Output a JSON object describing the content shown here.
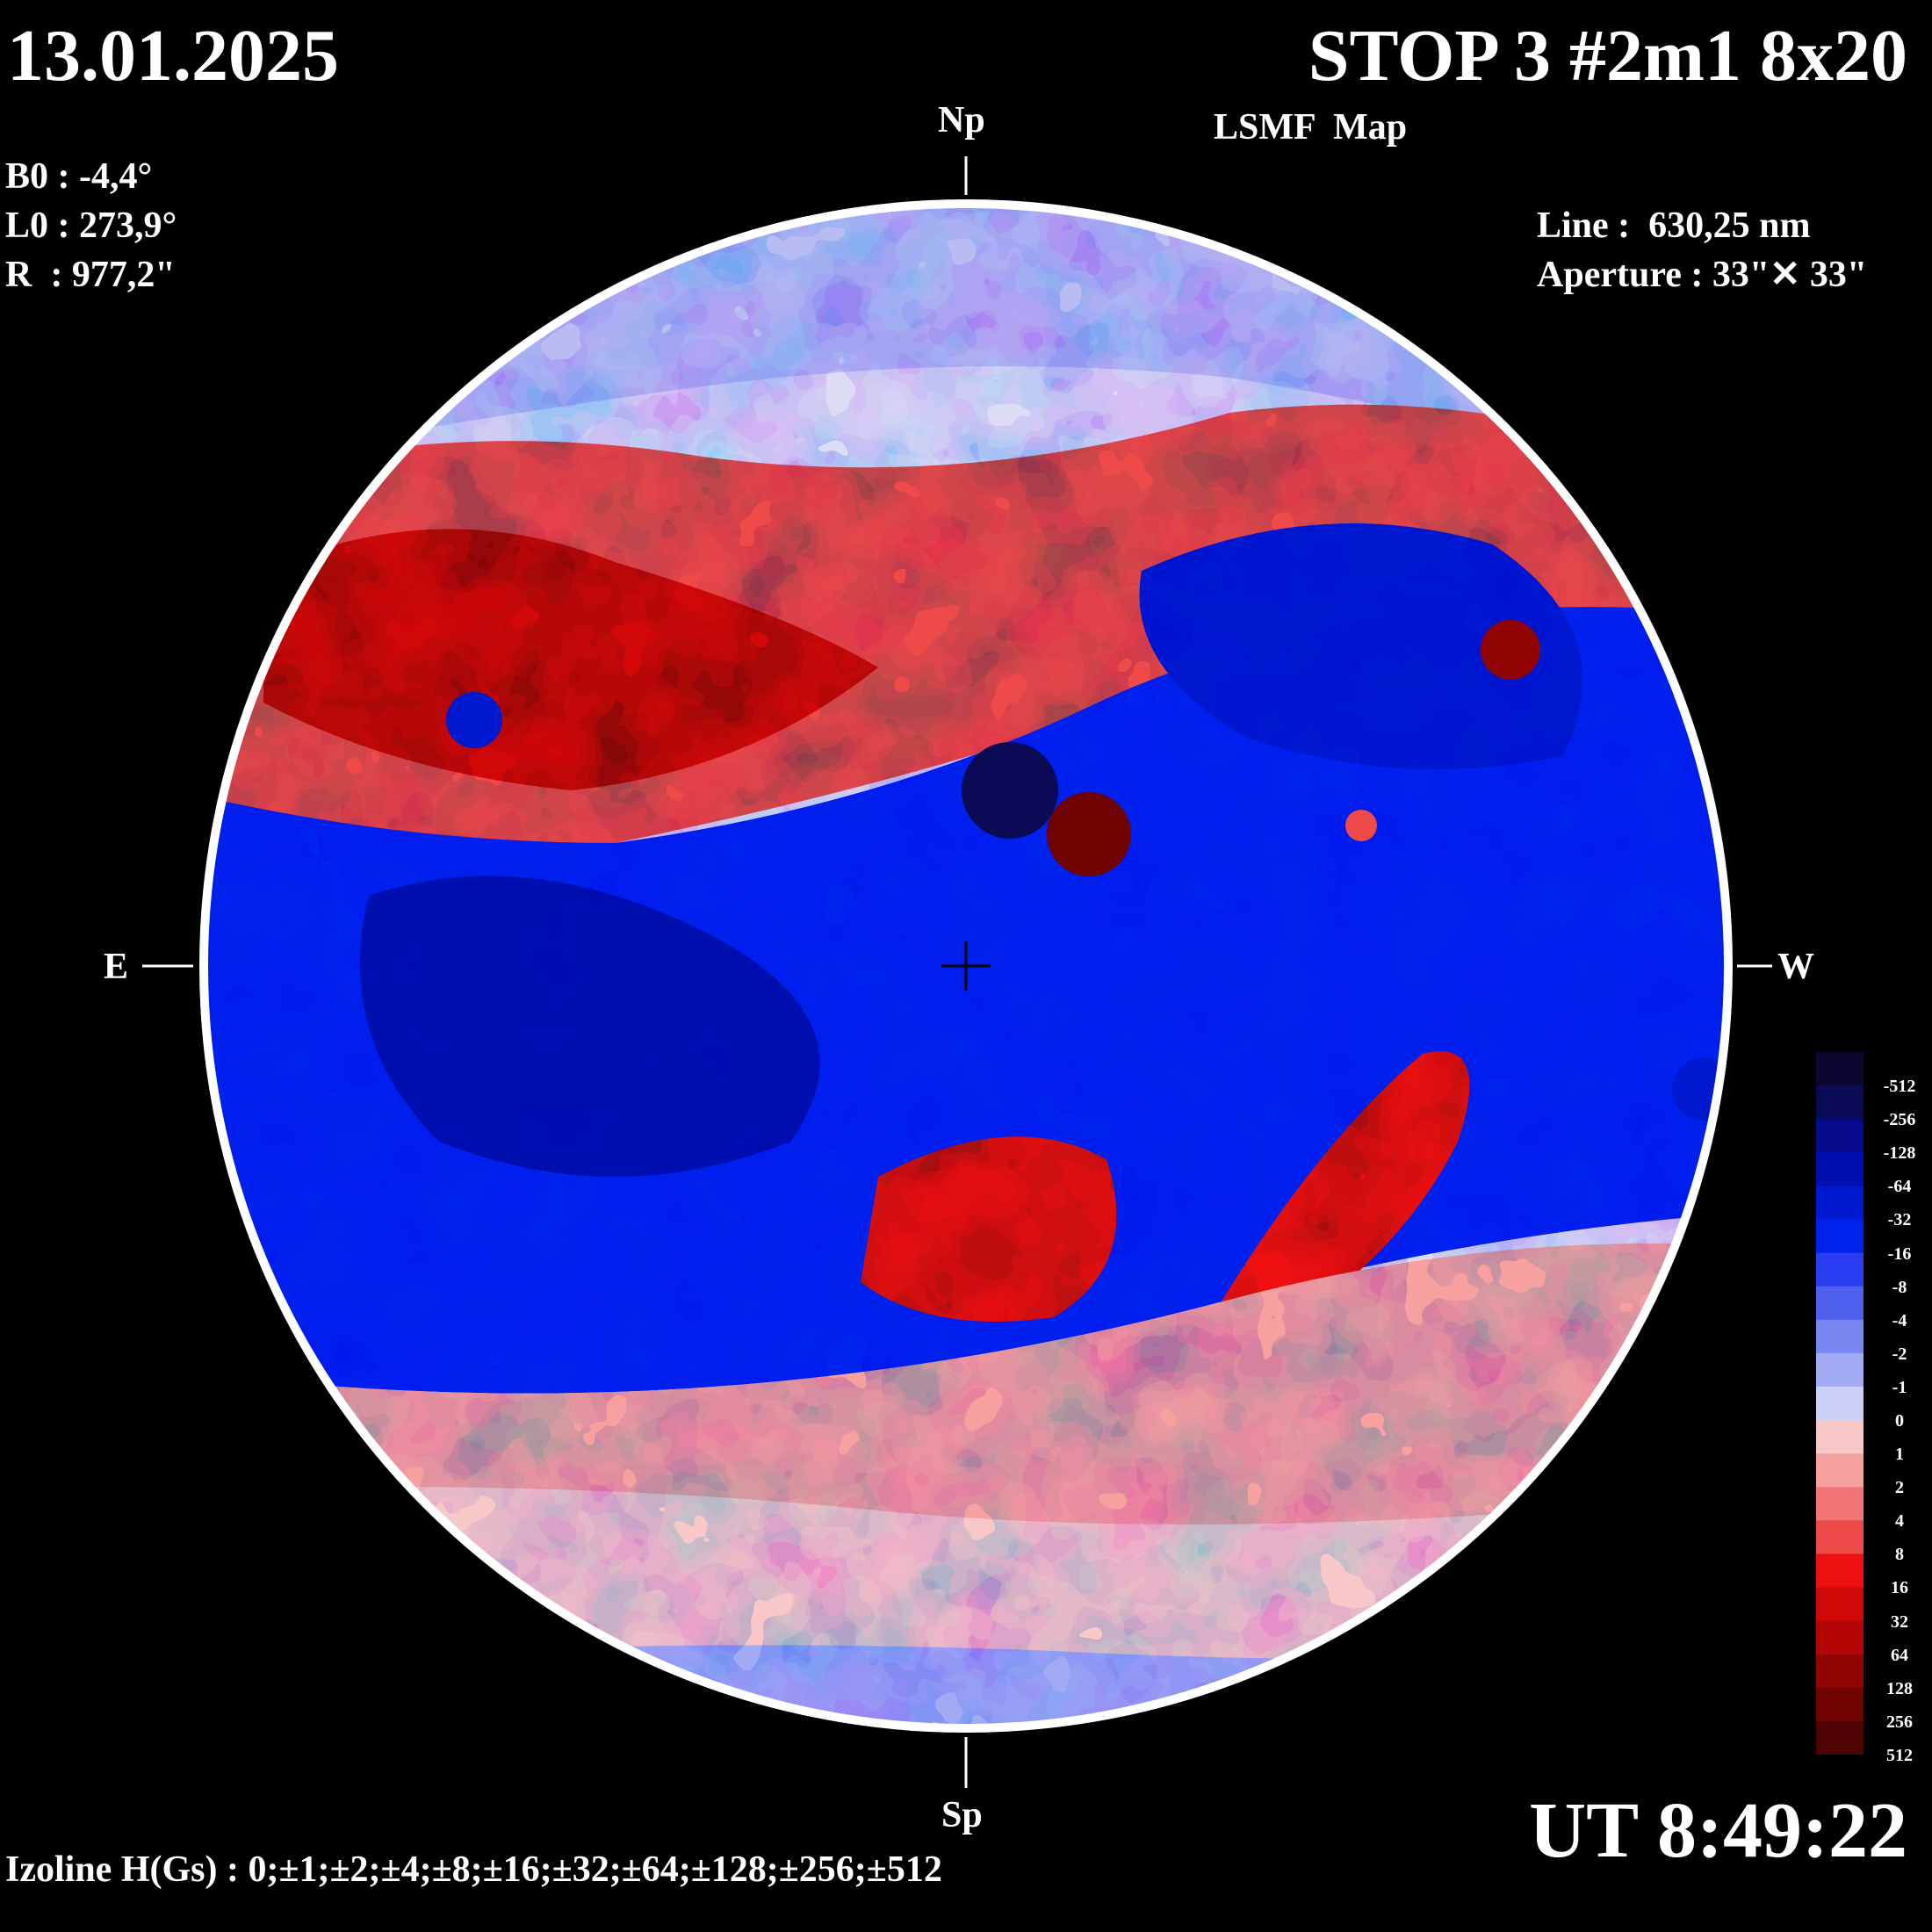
{
  "header": {
    "date": "13.01.2025",
    "title": "STOP 3 #2m1 8x20",
    "subtitle": "LSMF  Map"
  },
  "parameters": [
    {
      "label": "B0 : -4,4°"
    },
    {
      "label": "L0 : 273,9°"
    },
    {
      "label": "R  : 977,2\""
    }
  ],
  "instrument": {
    "line": "Line :  630,25 nm",
    "aperture": "Aperture : 33\"✕ 33\""
  },
  "directions": {
    "north": "Np",
    "south": "Sp",
    "east": "E",
    "west": "W"
  },
  "time": "UT 8:49:22",
  "izoline": "Izoline H(Gs) : 0;±1;±2;±4;±8;±16;±32;±64;±128;±256;±512",
  "colors": {
    "background": "#000000",
    "outline": "#ffffff"
  },
  "color_scale": {
    "labels": [
      "-512",
      "-256",
      "-128",
      "-64",
      "-32",
      "-16",
      "-8",
      "-4",
      "-2",
      "-1",
      "0",
      "1",
      "2",
      "4",
      "8",
      "16",
      "32",
      "64",
      "128",
      "256",
      "512"
    ],
    "colors": [
      "#0d0730",
      "#0a0a55",
      "#060a8c",
      "#0010b0",
      "#0018d0",
      "#0022ee",
      "#2a3cf2",
      "#5060ee",
      "#7a86f0",
      "#a2aaf4",
      "#ccd0f8",
      "#f8c8c8",
      "#f6a0a0",
      "#f27676",
      "#ee4a4a",
      "#ee1010",
      "#d20808",
      "#b40606",
      "#920404",
      "#700202",
      "#4e0202"
    ]
  }
}
